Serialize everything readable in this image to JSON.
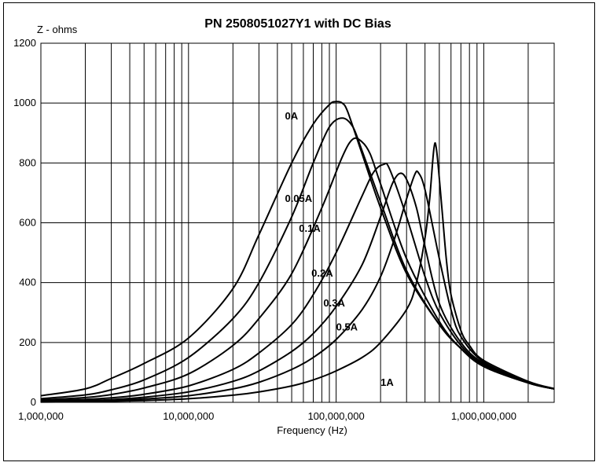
{
  "chart_data": {
    "type": "line",
    "title": "PN 2508051027Y1 with DC Bias",
    "xlabel": "Frequency (Hz)",
    "ylabel": "Z - ohms",
    "x_scale": "log",
    "xlim": [
      1000000,
      3000000000
    ],
    "ylim": [
      0,
      1200
    ],
    "x_ticks": [
      {
        "value": 1000000,
        "label": "1,000,000"
      },
      {
        "value": 10000000,
        "label": "10,000,000"
      },
      {
        "value": 100000000,
        "label": "100,000,000"
      },
      {
        "value": 1000000000,
        "label": "1,000,000,000"
      }
    ],
    "y_ticks": [
      {
        "value": 0,
        "label": "0"
      },
      {
        "value": 200,
        "label": "200"
      },
      {
        "value": 400,
        "label": "400"
      },
      {
        "value": 600,
        "label": "600"
      },
      {
        "value": 800,
        "label": "800"
      },
      {
        "value": 1000,
        "label": "1000"
      },
      {
        "value": 1200,
        "label": "1200"
      }
    ],
    "grid": true,
    "legend": "none",
    "series": [
      {
        "name": "0A",
        "label_at": [
          45000000,
          945
        ],
        "points": [
          [
            1000000,
            22
          ],
          [
            2000000,
            45
          ],
          [
            3000000,
            80
          ],
          [
            5000000,
            130
          ],
          [
            10000000,
            215
          ],
          [
            20000000,
            380
          ],
          [
            30000000,
            560
          ],
          [
            50000000,
            800
          ],
          [
            70000000,
            930
          ],
          [
            90000000,
            995
          ],
          [
            100000000,
            1005
          ],
          [
            110000000,
            1000
          ],
          [
            120000000,
            970
          ],
          [
            150000000,
            830
          ],
          [
            200000000,
            650
          ],
          [
            300000000,
            430
          ],
          [
            500000000,
            260
          ],
          [
            700000000,
            180
          ],
          [
            1000000000,
            120
          ],
          [
            2000000000,
            65
          ],
          [
            3000000000,
            45
          ]
        ]
      },
      {
        "name": "0.05A",
        "label_at": [
          45000000,
          670
        ],
        "points": [
          [
            1000000,
            12
          ],
          [
            2000000,
            25
          ],
          [
            3000000,
            42
          ],
          [
            5000000,
            75
          ],
          [
            10000000,
            150
          ],
          [
            20000000,
            280
          ],
          [
            30000000,
            400
          ],
          [
            50000000,
            620
          ],
          [
            70000000,
            800
          ],
          [
            90000000,
            920
          ],
          [
            110000000,
            950
          ],
          [
            130000000,
            920
          ],
          [
            150000000,
            840
          ],
          [
            200000000,
            670
          ],
          [
            300000000,
            440
          ],
          [
            500000000,
            260
          ],
          [
            700000000,
            180
          ],
          [
            1000000000,
            120
          ],
          [
            2000000000,
            65
          ],
          [
            3000000000,
            45
          ]
        ]
      },
      {
        "name": "0.1A",
        "label_at": [
          56000000,
          570
        ],
        "points": [
          [
            1000000,
            8
          ],
          [
            2000000,
            16
          ],
          [
            3000000,
            26
          ],
          [
            5000000,
            48
          ],
          [
            10000000,
            95
          ],
          [
            20000000,
            190
          ],
          [
            30000000,
            280
          ],
          [
            50000000,
            430
          ],
          [
            80000000,
            650
          ],
          [
            110000000,
            820
          ],
          [
            130000000,
            880
          ],
          [
            150000000,
            870
          ],
          [
            170000000,
            830
          ],
          [
            200000000,
            730
          ],
          [
            300000000,
            480
          ],
          [
            500000000,
            270
          ],
          [
            700000000,
            180
          ],
          [
            1000000000,
            120
          ],
          [
            2000000000,
            65
          ],
          [
            3000000000,
            45
          ]
        ]
      },
      {
        "name": "0.2A",
        "label_at": [
          68000000,
          420
        ],
        "points": [
          [
            1000000,
            5
          ],
          [
            2000000,
            10
          ],
          [
            3000000,
            15
          ],
          [
            5000000,
            27
          ],
          [
            10000000,
            55
          ],
          [
            20000000,
            110
          ],
          [
            30000000,
            165
          ],
          [
            50000000,
            260
          ],
          [
            70000000,
            360
          ],
          [
            100000000,
            500
          ],
          [
            150000000,
            690
          ],
          [
            180000000,
            770
          ],
          [
            210000000,
            795
          ],
          [
            230000000,
            780
          ],
          [
            300000000,
            620
          ],
          [
            400000000,
            420
          ],
          [
            500000000,
            300
          ],
          [
            700000000,
            190
          ],
          [
            1000000000,
            125
          ],
          [
            2000000000,
            65
          ],
          [
            3000000000,
            45
          ]
        ]
      },
      {
        "name": "0.3A",
        "label_at": [
          82000000,
          320
        ],
        "points": [
          [
            1000000,
            3
          ],
          [
            2000000,
            6
          ],
          [
            3000000,
            9
          ],
          [
            5000000,
            17
          ],
          [
            10000000,
            35
          ],
          [
            20000000,
            70
          ],
          [
            30000000,
            105
          ],
          [
            50000000,
            170
          ],
          [
            70000000,
            230
          ],
          [
            100000000,
            320
          ],
          [
            150000000,
            460
          ],
          [
            200000000,
            620
          ],
          [
            240000000,
            730
          ],
          [
            270000000,
            765
          ],
          [
            300000000,
            745
          ],
          [
            350000000,
            650
          ],
          [
            400000000,
            520
          ],
          [
            500000000,
            330
          ],
          [
            700000000,
            200
          ],
          [
            1000000000,
            130
          ],
          [
            2000000000,
            65
          ],
          [
            3000000000,
            45
          ]
        ]
      },
      {
        "name": "0.5A",
        "label_at": [
          100000000,
          240
        ],
        "points": [
          [
            1000000,
            2
          ],
          [
            2000000,
            4
          ],
          [
            3000000,
            6
          ],
          [
            5000000,
            11
          ],
          [
            10000000,
            22
          ],
          [
            20000000,
            45
          ],
          [
            30000000,
            67
          ],
          [
            50000000,
            110
          ],
          [
            70000000,
            150
          ],
          [
            100000000,
            210
          ],
          [
            150000000,
            310
          ],
          [
            200000000,
            420
          ],
          [
            250000000,
            550
          ],
          [
            300000000,
            680
          ],
          [
            340000000,
            760
          ],
          [
            360000000,
            768
          ],
          [
            400000000,
            710
          ],
          [
            500000000,
            480
          ],
          [
            600000000,
            310
          ],
          [
            700000000,
            220
          ],
          [
            1000000000,
            135
          ],
          [
            2000000000,
            68
          ],
          [
            3000000000,
            45
          ]
        ]
      },
      {
        "name": "1A",
        "label_at": [
          200000000,
          55
        ],
        "points": [
          [
            1000000,
            1
          ],
          [
            2000000,
            2
          ],
          [
            5000000,
            6
          ],
          [
            10000000,
            12
          ],
          [
            20000000,
            24
          ],
          [
            30000000,
            35
          ],
          [
            50000000,
            55
          ],
          [
            70000000,
            75
          ],
          [
            100000000,
            105
          ],
          [
            150000000,
            150
          ],
          [
            200000000,
            200
          ],
          [
            300000000,
            310
          ],
          [
            350000000,
            400
          ],
          [
            400000000,
            550
          ],
          [
            430000000,
            680
          ],
          [
            460000000,
            850
          ],
          [
            480000000,
            840
          ],
          [
            520000000,
            650
          ],
          [
            560000000,
            470
          ],
          [
            600000000,
            360
          ],
          [
            700000000,
            240
          ],
          [
            800000000,
            190
          ],
          [
            1000000000,
            140
          ],
          [
            2000000000,
            70
          ],
          [
            3000000000,
            46
          ]
        ]
      }
    ]
  }
}
